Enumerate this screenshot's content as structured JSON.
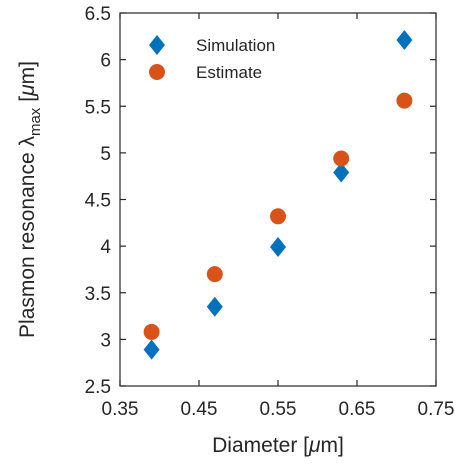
{
  "chart_data": {
    "type": "scatter",
    "title": "",
    "xlabel": {
      "prefix": "Diameter [",
      "mu": "μ",
      "suffix": "m]"
    },
    "ylabel": {
      "prefix": "Plasmon resonance ",
      "lambda": "λ",
      "subscript": "max",
      "bracket_open": "[",
      "mu": "μ",
      "suffix": "m]"
    },
    "xlim": [
      0.35,
      0.75
    ],
    "ylim": [
      2.5,
      6.5
    ],
    "xticks": [
      "0.35",
      "0.45",
      "0.55",
      "0.65",
      "0.75"
    ],
    "yticks": [
      "2.5",
      "3",
      "3.5",
      "4",
      "4.5",
      "5",
      "5.5",
      "6",
      "6.5"
    ],
    "grid": false,
    "legend_position": "top-left",
    "series": [
      {
        "name": "Simulation",
        "marker": "diamond",
        "color": "#0072BD",
        "x": [
          0.39,
          0.47,
          0.55,
          0.63,
          0.71
        ],
        "y": [
          2.89,
          3.35,
          3.99,
          4.79,
          6.21
        ]
      },
      {
        "name": "Estimate",
        "marker": "circle",
        "color": "#D95319",
        "x": [
          0.39,
          0.47,
          0.55,
          0.63,
          0.71
        ],
        "y": [
          3.08,
          3.7,
          4.32,
          4.94,
          5.56
        ]
      }
    ]
  }
}
